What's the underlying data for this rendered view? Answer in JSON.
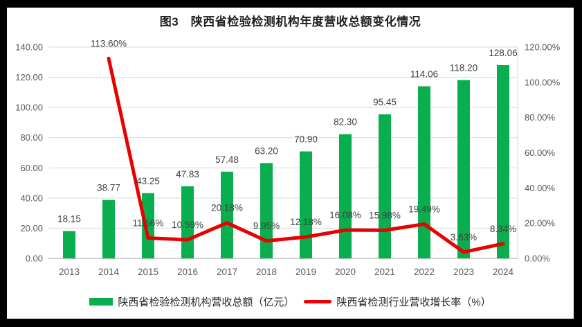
{
  "title": "图3　陕西省检验检测机构年度营收总额变化情况",
  "legend": {
    "bar_label": "陕西省检验检测机构营收总额（亿元）",
    "line_label": "陕西省检测行业营收增长率（%）"
  },
  "colors": {
    "bar": "#0bae4f",
    "line": "#e90000",
    "gridline": "#d9d9d9",
    "axis_line": "#bfbfbf",
    "tick_text": "#595959",
    "data_label_text": "#404040",
    "frame": "#000000",
    "surface": "#ffffff"
  },
  "chart_data": {
    "type": "combo bar+line",
    "title": "图3 陕西省检验检测机构年度营收总额变化情况",
    "categories": [
      "2013",
      "2014",
      "2015",
      "2016",
      "2017",
      "2018",
      "2019",
      "2020",
      "2021",
      "2022",
      "2023",
      "2024"
    ],
    "series": [
      {
        "name": "陕西省检验检测机构营收总额（亿元）",
        "type": "bar",
        "axis": "left",
        "values": [
          18.15,
          38.77,
          43.25,
          47.83,
          57.48,
          63.2,
          70.9,
          82.3,
          95.45,
          114.06,
          118.2,
          128.06
        ],
        "labels": [
          "18.15",
          "38.77",
          "43.25",
          "47.83",
          "57.48",
          "63.20",
          "70.90",
          "82.30",
          "95.45",
          "114.06",
          "118.20",
          "128.06"
        ]
      },
      {
        "name": "陕西省检测行业营收增长率（%）",
        "type": "line",
        "axis": "right",
        "values": [
          null,
          113.6,
          11.56,
          10.59,
          20.18,
          9.95,
          12.18,
          16.08,
          15.98,
          19.49,
          3.63,
          8.34
        ],
        "labels": [
          "",
          "113.60%",
          "11.56%",
          "10.59%",
          "20.18%",
          "9.95%",
          "12.18%",
          "16.08%",
          "15.98%",
          "19.49%",
          "3.63%",
          "8.34%"
        ]
      }
    ],
    "left_axis": {
      "min": 0,
      "max": 140,
      "step": 20,
      "tick_labels": [
        "0.00",
        "20.00",
        "40.00",
        "60.00",
        "80.00",
        "100.00",
        "120.00",
        "140.00"
      ]
    },
    "right_axis": {
      "min": 0,
      "max": 120,
      "step": 20,
      "tick_labels": [
        "0.00%",
        "20.00%",
        "40.00%",
        "60.00%",
        "80.00%",
        "100.00%",
        "120.00%"
      ]
    },
    "grid": true,
    "legend_position": "bottom"
  }
}
